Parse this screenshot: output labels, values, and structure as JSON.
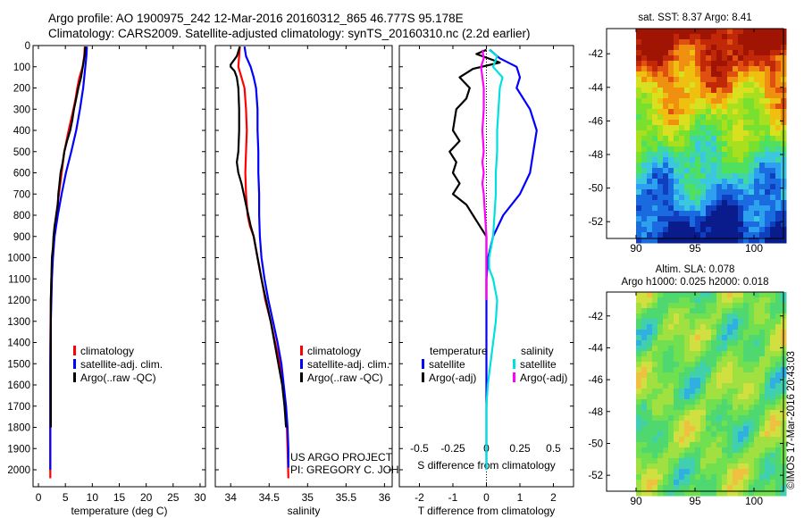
{
  "header": {
    "line1": "Argo profile: AO 1900975_242 12-Mar-2016 20160312_865 46.777S 95.178E",
    "line2": "Climatology: CARS2009. Satellite-adjusted climatology: synTS_20160310.nc (2.2d earlier)"
  },
  "footer_stamp": "©IMOS 17-Mar-2016 20:43:03",
  "colors": {
    "climatology": "#ff0000",
    "satellite": "#0000ff",
    "argo": "#000000",
    "t_sat": "#0000ff",
    "s_sat": "#00e0e0",
    "s_argo": "#ff00ff"
  },
  "chart_data": [
    {
      "type": "line",
      "id": "temperature-profile",
      "xlabel": "temperature (deg C)",
      "xlim": [
        -1,
        31
      ],
      "ylim": [
        2080,
        0
      ],
      "xticks": [
        0,
        5,
        10,
        15,
        20,
        25,
        30
      ],
      "yticks": [
        0,
        100,
        200,
        300,
        400,
        500,
        600,
        700,
        800,
        900,
        1000,
        1100,
        1200,
        1300,
        1400,
        1500,
        1600,
        1700,
        1800,
        1900,
        2000
      ],
      "legend": {
        "items": [
          "climatology",
          "satellite-adj. clim.",
          "Argo(..raw -QC)"
        ]
      },
      "series": [
        {
          "name": "climatology",
          "color": "#ff0000",
          "width": 2.2,
          "x": [
            8.6,
            8.5,
            8.2,
            7.6,
            7.2,
            6.9,
            6.5,
            5.6,
            4.8,
            4.3,
            3.8,
            3.3,
            2.9,
            2.6,
            2.4,
            2.3,
            2.25,
            2.2,
            2.2,
            2.2,
            2.2,
            2.2,
            2.2,
            2.2
          ],
          "y": [
            5,
            50,
            100,
            150,
            200,
            250,
            300,
            400,
            500,
            600,
            700,
            800,
            900,
            1000,
            1100,
            1200,
            1300,
            1400,
            1500,
            1600,
            1700,
            1800,
            1900,
            2040
          ]
        },
        {
          "name": "satellite-adj. clim.",
          "color": "#0000ff",
          "width": 2.2,
          "x": [
            9.0,
            8.9,
            8.7,
            8.5,
            8.3,
            8.0,
            7.7,
            7.0,
            6.1,
            5.1,
            4.3,
            3.6,
            3.0,
            2.7,
            2.5,
            2.4,
            2.3,
            2.25,
            2.2,
            2.2,
            2.2,
            2.2,
            2.2,
            2.2
          ],
          "y": [
            5,
            50,
            100,
            150,
            200,
            250,
            300,
            400,
            500,
            600,
            700,
            800,
            900,
            1000,
            1100,
            1200,
            1300,
            1400,
            1500,
            1600,
            1700,
            1800,
            1900,
            2000
          ]
        },
        {
          "name": "Argo(..raw -QC)",
          "color": "#000000",
          "width": 2.2,
          "x": [
            8.7,
            8.6,
            8.3,
            8.1,
            7.9,
            7.4,
            7.0,
            6.6,
            6.3,
            5.9,
            5.3,
            4.8,
            4.5,
            4.1,
            3.9,
            3.7,
            3.6,
            3.3,
            3.0,
            2.8,
            2.7,
            2.5,
            2.4,
            2.3,
            2.3,
            2.3,
            2.3
          ],
          "y": [
            5,
            40,
            90,
            120,
            150,
            200,
            250,
            300,
            350,
            400,
            450,
            500,
            550,
            600,
            650,
            700,
            750,
            800,
            850,
            900,
            950,
            1000,
            1100,
            1200,
            1400,
            1600,
            1800
          ]
        }
      ]
    },
    {
      "type": "line",
      "id": "salinity-profile",
      "xlabel": "salinity",
      "xlim": [
        33.8,
        36.1
      ],
      "ylim": [
        2080,
        0
      ],
      "xticks": [
        34,
        34.5,
        35,
        35.5,
        36
      ],
      "xticklabels": [
        "34",
        "34.5",
        "35",
        "35.5",
        "36"
      ],
      "legend": {
        "items": [
          "climatology",
          "satellite-adj. clim.",
          "Argo(..raw -QC)"
        ]
      },
      "annotation": [
        "US ARGO PROJECT",
        "PI: GREGORY C. JOHNSON"
      ],
      "series": [
        {
          "name": "climatology",
          "color": "#ff0000",
          "width": 2.2,
          "x": [
            34.12,
            34.11,
            34.1,
            34.14,
            34.18,
            34.2,
            34.21,
            34.2,
            34.19,
            34.2,
            34.22,
            34.25,
            34.3,
            34.35,
            34.4,
            34.45,
            34.52,
            34.58,
            34.64,
            34.68,
            34.71,
            34.73,
            34.74,
            34.75
          ],
          "y": [
            5,
            50,
            100,
            150,
            200,
            300,
            400,
            500,
            600,
            700,
            800,
            850,
            900,
            1000,
            1100,
            1200,
            1300,
            1400,
            1500,
            1600,
            1700,
            1800,
            1900,
            2040
          ]
        },
        {
          "name": "satellite-adj. clim.",
          "color": "#0000ff",
          "width": 2.2,
          "x": [
            34.18,
            34.2,
            34.26,
            34.3,
            34.33,
            34.35,
            34.35,
            34.36,
            34.36,
            34.37,
            34.37,
            34.37,
            34.38,
            34.4,
            34.44,
            34.49,
            34.55,
            34.61,
            34.66,
            34.69,
            34.72,
            34.74,
            34.75,
            34.75
          ],
          "y": [
            5,
            50,
            100,
            150,
            200,
            300,
            400,
            500,
            600,
            700,
            750,
            800,
            900,
            1000,
            1100,
            1200,
            1300,
            1400,
            1500,
            1600,
            1700,
            1800,
            1900,
            1990
          ]
        },
        {
          "name": "Argo(..raw -QC)",
          "color": "#000000",
          "width": 2.2,
          "x": [
            34.12,
            34.08,
            34.0,
            34.0,
            34.05,
            34.08,
            34.1,
            34.11,
            34.11,
            34.1,
            34.08,
            34.1,
            34.14,
            34.17,
            34.2,
            34.23,
            34.26,
            34.3,
            34.35,
            34.4,
            34.46,
            34.52,
            34.57,
            34.62,
            34.67,
            34.7,
            34.72
          ],
          "y": [
            5,
            50,
            90,
            100,
            120,
            150,
            200,
            300,
            400,
            500,
            550,
            600,
            650,
            700,
            750,
            800,
            850,
            900,
            1000,
            1100,
            1200,
            1300,
            1400,
            1500,
            1600,
            1700,
            1800
          ]
        }
      ]
    },
    {
      "type": "line",
      "id": "difference-profile",
      "xlabel": "T difference from climatology",
      "xlabel2": "S difference from climatology",
      "xlim": [
        -2.6,
        2.6
      ],
      "ylim": [
        2080,
        0
      ],
      "xticks": [
        -2,
        -1,
        0,
        1,
        2
      ],
      "xticks2": [
        -0.5,
        -0.25,
        0,
        0.25,
        0.5
      ],
      "xticklabels2": [
        "-0.5",
        "-0.25",
        "0",
        "0.25",
        "0.5"
      ],
      "x2_scale": 4,
      "legend": {
        "left_title": "temperature",
        "right_title": "salinity",
        "left_items": [
          "satellite",
          "Argo(-adj)"
        ],
        "right_items": [
          "satellite",
          "Argo(-adj)"
        ]
      },
      "series": [
        {
          "name": "T satellite",
          "color": "#0000ff",
          "width": 2.2,
          "x": [
            0.1,
            0.4,
            0.9,
            1.0,
            0.9,
            1.1,
            1.3,
            1.5,
            1.4,
            1.3,
            1.0,
            0.5,
            0.2,
            0.05,
            0.0,
            0.0,
            0.0,
            0.0,
            0.0,
            0.0,
            0.0,
            0.0
          ],
          "y": [
            20,
            60,
            100,
            150,
            200,
            250,
            300,
            400,
            500,
            600,
            700,
            800,
            900,
            1000,
            1100,
            1200,
            1300,
            1400,
            1500,
            1600,
            1700,
            2000
          ]
        },
        {
          "name": "T Argo(-adj)",
          "color": "#000000",
          "width": 2.2,
          "x": [
            0.0,
            -0.3,
            0.4,
            -0.4,
            -0.8,
            -0.5,
            -0.6,
            -0.9,
            -1.0,
            -0.8,
            -1.1,
            -0.9,
            -1.0,
            -0.8,
            -1.0,
            -0.6,
            -0.4,
            -0.2,
            0.0,
            0.0,
            0.0,
            0.0
          ],
          "y": [
            20,
            40,
            80,
            110,
            150,
            200,
            250,
            300,
            400,
            450,
            500,
            550,
            600,
            650,
            700,
            750,
            800,
            850,
            900,
            1000,
            1100,
            1200
          ]
        },
        {
          "name": "S satellite",
          "color": "#00e0e0",
          "width": 2.2,
          "x": [
            0.02,
            0.08,
            0.05,
            0.12,
            0.1,
            0.09,
            0.08,
            0.08,
            0.07,
            0.07,
            0.06,
            0.05,
            0.02,
            0.02,
            0.05,
            0.08,
            0.07,
            0.05,
            0.03,
            0.01,
            0.0,
            0.0,
            0.0
          ],
          "y": [
            20,
            50,
            100,
            150,
            200,
            300,
            400,
            500,
            600,
            700,
            800,
            900,
            1000,
            1050,
            1100,
            1200,
            1300,
            1400,
            1500,
            1600,
            1700,
            1800,
            2000
          ]
        },
        {
          "name": "S Argo(-adj)",
          "color": "#ff00ff",
          "width": 2.2,
          "x": [
            -0.03,
            -0.02,
            -0.04,
            -0.02,
            -0.02,
            -0.03,
            -0.02,
            -0.03,
            -0.02,
            -0.03,
            -0.02,
            -0.01,
            0.0,
            0.0,
            0.0,
            0.0
          ],
          "y": [
            20,
            60,
            100,
            200,
            300,
            400,
            500,
            550,
            600,
            650,
            700,
            800,
            900,
            1000,
            1100,
            1200
          ]
        }
      ]
    },
    {
      "type": "heatmap",
      "id": "sst-map",
      "title": "sat. SST: 8.37 Argo: 8.41",
      "xlim": [
        87.5,
        102.5
      ],
      "ylim": [
        -53,
        -40.5
      ],
      "xticks": [
        90,
        95,
        100
      ],
      "yticks": [
        -42,
        -44,
        -46,
        -48,
        -50,
        -52
      ],
      "data_x_range": [
        90,
        102.5
      ],
      "data_y_range": [
        -53,
        -40.5
      ]
    },
    {
      "type": "heatmap",
      "id": "sla-map",
      "title": "Altim. SLA: 0.078",
      "subtitle": "Argo h1000: 0.025 h2000: 0.018",
      "xlim": [
        87.5,
        102.5
      ],
      "ylim": [
        -53,
        -40.5
      ],
      "xticks": [
        90,
        95,
        100
      ],
      "yticks": [
        -42,
        -44,
        -46,
        -48,
        -50,
        -52
      ],
      "data_x_range": [
        90,
        102.5
      ],
      "data_y_range": [
        -53,
        -40.5
      ]
    }
  ]
}
